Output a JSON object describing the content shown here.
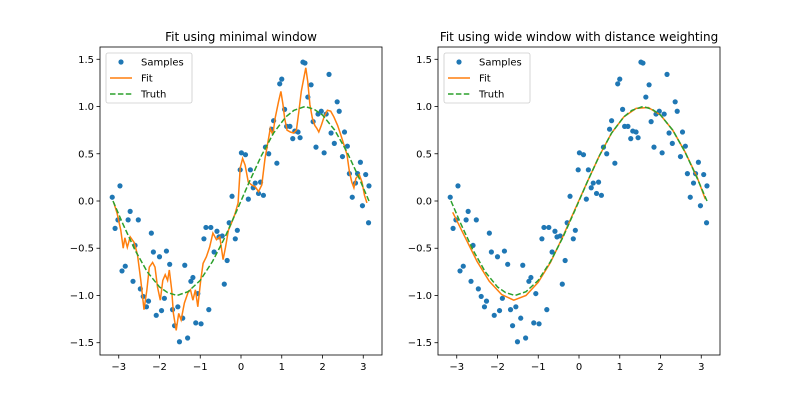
{
  "colors": {
    "samples": "#1f77b4",
    "fit": "#ff7f0e",
    "truth": "#2ca02c"
  },
  "legend": {
    "samples": "Samples",
    "fit": "Fit",
    "truth": "Truth",
    "placement": "upper-left"
  },
  "chart_data": [
    {
      "type": "line",
      "title": "Fit using minimal window",
      "xlim": [
        -3.46,
        3.46
      ],
      "ylim": [
        -1.63,
        1.63
      ],
      "xticks": [
        -3,
        -2,
        -1,
        0,
        1,
        2,
        3
      ],
      "xtick_labels": [
        "−3",
        "−2",
        "−1",
        "0",
        "1",
        "2",
        "3"
      ],
      "yticks": [
        -1.5,
        -1.0,
        -0.5,
        0.0,
        0.5,
        1.0,
        1.5
      ],
      "ytick_labels": [
        "−1.5",
        "−1.0",
        "−0.5",
        "0.0",
        "0.5",
        "1.0",
        "1.5"
      ],
      "fit": {
        "x": [
          -3.12,
          -3.04,
          -2.95,
          -2.89,
          -2.85,
          -2.79,
          -2.72,
          -2.62,
          -2.54,
          -2.46,
          -2.38,
          -2.31,
          -2.25,
          -2.17,
          -2.11,
          -2.05,
          -1.98,
          -1.92,
          -1.86,
          -1.8,
          -1.76,
          -1.7,
          -1.66,
          -1.59,
          -1.53,
          -1.47,
          -1.39,
          -1.3,
          -1.24,
          -1.18,
          -1.12,
          -1.06,
          -0.99,
          -0.93,
          -0.85,
          -0.77,
          -0.69,
          -0.6,
          -0.52,
          -0.44,
          -0.38,
          -0.31,
          -0.23,
          -0.15,
          -0.07,
          -0.02,
          0.04,
          0.1,
          0.18,
          0.26,
          0.35,
          0.43,
          0.51,
          0.59,
          0.68,
          0.72,
          0.78,
          0.84,
          0.92,
          0.98,
          1.03,
          1.07,
          1.13,
          1.21,
          1.29,
          1.36,
          1.42,
          1.48,
          1.54,
          1.59,
          1.64,
          1.69,
          1.75,
          1.81,
          1.86,
          1.91,
          1.97,
          2.04,
          2.12,
          2.2,
          2.28,
          2.37,
          2.45,
          2.53,
          2.6,
          2.66,
          2.72,
          2.77,
          2.82,
          2.9,
          2.97,
          3.03,
          3.09
        ],
        "y": [
          -0.02,
          -0.13,
          -0.31,
          -0.5,
          -0.39,
          -0.49,
          -0.38,
          -0.44,
          -0.57,
          -0.84,
          -1.15,
          -0.94,
          -0.7,
          -0.65,
          -0.7,
          -0.91,
          -1.05,
          -0.84,
          -0.78,
          -0.84,
          -0.73,
          -0.94,
          -1.19,
          -1.37,
          -1.19,
          -1.26,
          -1.08,
          -0.97,
          -0.94,
          -1.05,
          -0.94,
          -1.12,
          -0.84,
          -0.66,
          -0.59,
          -0.49,
          -0.34,
          -0.41,
          -0.38,
          -0.62,
          -0.49,
          -0.31,
          -0.23,
          -0.14,
          -0.02,
          0.35,
          0.45,
          0.38,
          0.2,
          0.17,
          0.15,
          0.1,
          0.17,
          0.45,
          0.67,
          0.77,
          0.7,
          0.88,
          1.05,
          1.16,
          1.02,
          0.88,
          0.75,
          0.73,
          0.72,
          0.75,
          0.95,
          1.16,
          1.3,
          1.41,
          1.26,
          1.02,
          0.88,
          0.8,
          0.77,
          0.73,
          0.8,
          0.89,
          0.96,
          0.95,
          0.89,
          0.8,
          0.7,
          0.59,
          0.49,
          0.31,
          0.2,
          0.14,
          0.24,
          0.28,
          0.2,
          0.06,
          -0.02
        ]
      }
    },
    {
      "type": "line",
      "title": "Fit using wide window with distance weighting",
      "xlim": [
        -3.46,
        3.46
      ],
      "ylim": [
        -1.63,
        1.63
      ],
      "xticks": [
        -3,
        -2,
        -1,
        0,
        1,
        2,
        3
      ],
      "xtick_labels": [
        "−3",
        "−2",
        "−1",
        "0",
        "1",
        "2",
        "3"
      ],
      "yticks": [
        -1.5,
        -1.0,
        -0.5,
        0.0,
        0.5,
        1.0,
        1.5
      ],
      "ytick_labels": [
        "−1.5",
        "−1.0",
        "−0.5",
        "0.0",
        "0.5",
        "1.0",
        "1.5"
      ],
      "fit": {
        "x": [
          -3.1,
          -2.8,
          -2.5,
          -2.2,
          -1.9,
          -1.6,
          -1.3,
          -1.0,
          -0.7,
          -0.4,
          -0.1,
          0.2,
          0.5,
          0.8,
          1.1,
          1.4,
          1.7,
          2.0,
          2.3,
          2.6,
          2.9,
          3.1
        ],
        "y": [
          -0.12,
          -0.38,
          -0.64,
          -0.85,
          -0.99,
          -1.05,
          -1.0,
          -0.86,
          -0.65,
          -0.38,
          -0.09,
          0.2,
          0.48,
          0.72,
          0.89,
          0.98,
          0.99,
          0.91,
          0.75,
          0.52,
          0.25,
          0.02
        ]
      }
    }
  ],
  "samples": {
    "x": [
      -3.16,
      -2.97,
      -3.09,
      -3.02,
      -2.72,
      -2.77,
      -2.52,
      -2.6,
      -2.84,
      -2.92,
      -2.65,
      -2.47,
      -2.4,
      -2.27,
      -2.32,
      -2.2,
      -2.15,
      -2.0,
      -1.83,
      -1.75,
      -1.88,
      -2.08,
      -1.95,
      -1.68,
      -1.55,
      -1.63,
      -1.43,
      -1.51,
      -1.31,
      -1.11,
      -0.98,
      -1.38,
      -1.23,
      -1.18,
      -1.06,
      -0.79,
      -0.91,
      -0.86,
      -0.74,
      -0.59,
      -0.54,
      -0.46,
      -0.66,
      -0.41,
      -0.34,
      -0.14,
      -0.09,
      -0.29,
      -0.22,
      -0.02,
      0.01,
      0.18,
      0.23,
      0.11,
      0.3,
      0.35,
      0.48,
      0.43,
      0.55,
      0.68,
      0.6,
      0.88,
      0.75,
      0.8,
      1.07,
      1.12,
      1.2,
      1.27,
      1.32,
      1.4,
      1.45,
      0.95,
      1.0,
      1.52,
      1.57,
      1.72,
      1.64,
      1.77,
      1.84,
      1.89,
      1.97,
      2.09,
      2.04,
      2.16,
      2.21,
      2.29,
      2.36,
      2.41,
      2.54,
      2.61,
      2.49,
      2.66,
      2.73,
      2.81,
      2.86,
      2.93,
      3.06,
      3.14,
      2.98,
      3.13
    ],
    "y": [
      0.04,
      0.16,
      -0.29,
      -0.2,
      -0.11,
      -0.2,
      -0.2,
      -0.47,
      -0.69,
      -0.74,
      -0.85,
      -0.93,
      -1.01,
      -1.06,
      -1.12,
      -0.34,
      -0.54,
      -0.59,
      -0.53,
      -0.67,
      -1.03,
      -1.21,
      -1.16,
      -1.15,
      -1.12,
      -1.32,
      -1.24,
      -1.49,
      -1.45,
      -1.29,
      -1.3,
      -0.68,
      -0.85,
      -0.81,
      -0.98,
      -1.15,
      -0.4,
      -0.28,
      -0.28,
      -0.32,
      -0.38,
      -0.37,
      -0.54,
      -0.88,
      -0.63,
      -0.4,
      -0.31,
      -0.23,
      0.05,
      0.33,
      0.51,
      0.02,
      0.33,
      0.49,
      0.14,
      0.19,
      0.2,
      0.08,
      0.06,
      0.5,
      0.57,
      0.4,
      0.76,
      0.85,
      0.97,
      0.79,
      0.79,
      0.66,
      0.74,
      0.73,
      0.67,
      1.24,
      1.29,
      1.47,
      1.46,
      1.23,
      1.1,
      0.84,
      0.57,
      0.92,
      0.95,
      0.92,
      0.51,
      1.34,
      0.72,
      0.61,
      1.05,
      0.95,
      0.73,
      0.58,
      0.47,
      0.29,
      0.04,
      0.19,
      0.29,
      0.41,
      0.28,
      0.16,
      -0.05,
      -0.23
    ]
  },
  "truth": {
    "x": [
      -3.14,
      -2.9,
      -2.6,
      -2.3,
      -2.0,
      -1.8,
      -1.57,
      -1.3,
      -1.0,
      -0.7,
      -0.4,
      -0.1,
      0.2,
      0.5,
      0.8,
      1.1,
      1.3,
      1.57,
      1.8,
      2.0,
      2.3,
      2.6,
      2.9,
      3.14
    ],
    "y": [
      0.0,
      -0.24,
      -0.52,
      -0.75,
      -0.91,
      -0.97,
      -1.0,
      -0.96,
      -0.84,
      -0.64,
      -0.39,
      -0.1,
      0.2,
      0.48,
      0.72,
      0.89,
      0.96,
      1.0,
      0.97,
      0.91,
      0.75,
      0.52,
      0.24,
      0.0
    ]
  }
}
